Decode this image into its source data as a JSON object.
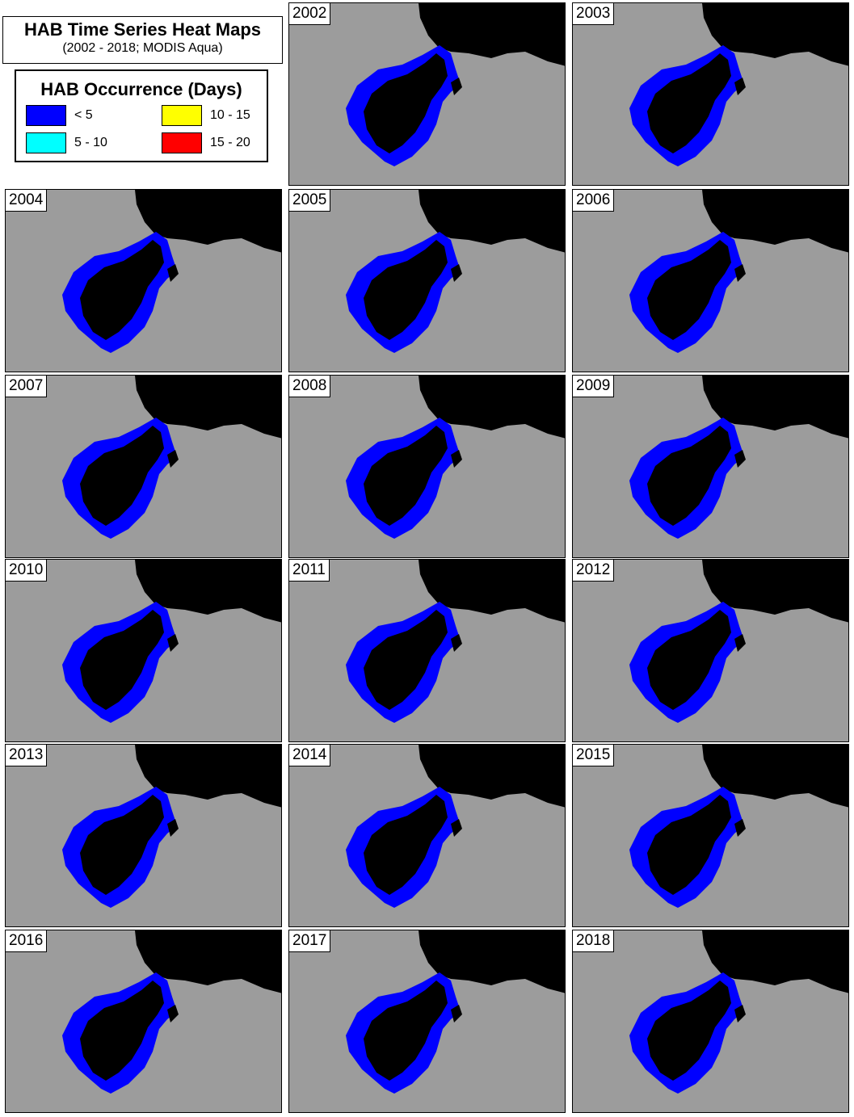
{
  "title": "HAB Time Series Heat Maps",
  "subtitle": "(2002 - 2018; MODIS Aqua)",
  "legend": {
    "title": "HAB Occurrence (Days)",
    "items": [
      {
        "label": "< 5",
        "color": "#0000ff"
      },
      {
        "label": "10 - 15",
        "color": "#ffff00"
      },
      {
        "label": "5 - 10",
        "color": "#00ffff"
      },
      {
        "label": "15 - 20",
        "color": "#ff0000"
      }
    ]
  },
  "panels": [
    {
      "year": "2002"
    },
    {
      "year": "2003"
    },
    {
      "year": "2004"
    },
    {
      "year": "2005"
    },
    {
      "year": "2006"
    },
    {
      "year": "2007"
    },
    {
      "year": "2008"
    },
    {
      "year": "2009"
    },
    {
      "year": "2010"
    },
    {
      "year": "2011"
    },
    {
      "year": "2012"
    },
    {
      "year": "2013"
    },
    {
      "year": "2014"
    },
    {
      "year": "2015"
    },
    {
      "year": "2016"
    },
    {
      "year": "2017"
    },
    {
      "year": "2018"
    }
  ]
}
